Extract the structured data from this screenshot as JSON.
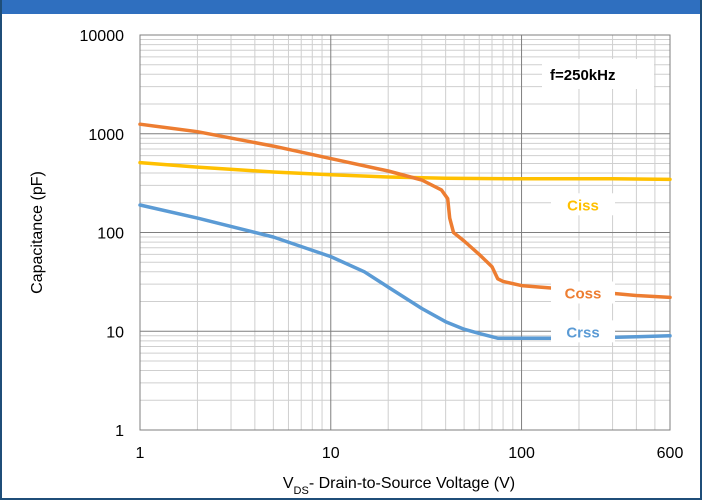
{
  "chart_data": {
    "type": "line",
    "xlabel_prefix": "V",
    "xlabel_sub": "DS",
    "xlabel_suffix": "- Drain-to-Source Voltage (V)",
    "ylabel": "Capacitance (pF)",
    "x_scale": "log",
    "y_scale": "log",
    "xlim": [
      1,
      600
    ],
    "ylim": [
      1,
      10000
    ],
    "x_ticks": [
      1,
      10,
      100,
      600
    ],
    "x_tick_labels": [
      "1",
      "10",
      "100",
      "600"
    ],
    "y_ticks": [
      1,
      10,
      100,
      1000,
      10000
    ],
    "y_tick_labels": [
      "1",
      "10",
      "100",
      "1000",
      "10000"
    ],
    "grid": true,
    "annotation": "f=250kHz",
    "series": [
      {
        "name": "Ciss",
        "color": "#ffc000",
        "x": [
          1,
          2,
          5,
          10,
          20,
          40,
          100,
          300,
          600
        ],
        "y": [
          510,
          460,
          410,
          385,
          365,
          355,
          350,
          350,
          345
        ]
      },
      {
        "name": "Coss",
        "color": "#ed7d31",
        "x": [
          1,
          2,
          5,
          10,
          20,
          30,
          38,
          41,
          42,
          44,
          50,
          60,
          70,
          75,
          80,
          100,
          200,
          400,
          600
        ],
        "y": [
          1250,
          1050,
          750,
          560,
          420,
          340,
          270,
          220,
          140,
          100,
          82,
          60,
          45,
          34,
          32,
          29,
          26,
          23,
          22
        ]
      },
      {
        "name": "Crss",
        "color": "#5b9bd5",
        "x": [
          1,
          2,
          5,
          10,
          15,
          20,
          30,
          40,
          50,
          60,
          75,
          100,
          200,
          400,
          600
        ],
        "y": [
          190,
          140,
          90,
          57,
          40,
          28,
          17,
          12.5,
          10.5,
          9.5,
          8.5,
          8.5,
          8.5,
          8.8,
          9
        ]
      }
    ]
  }
}
